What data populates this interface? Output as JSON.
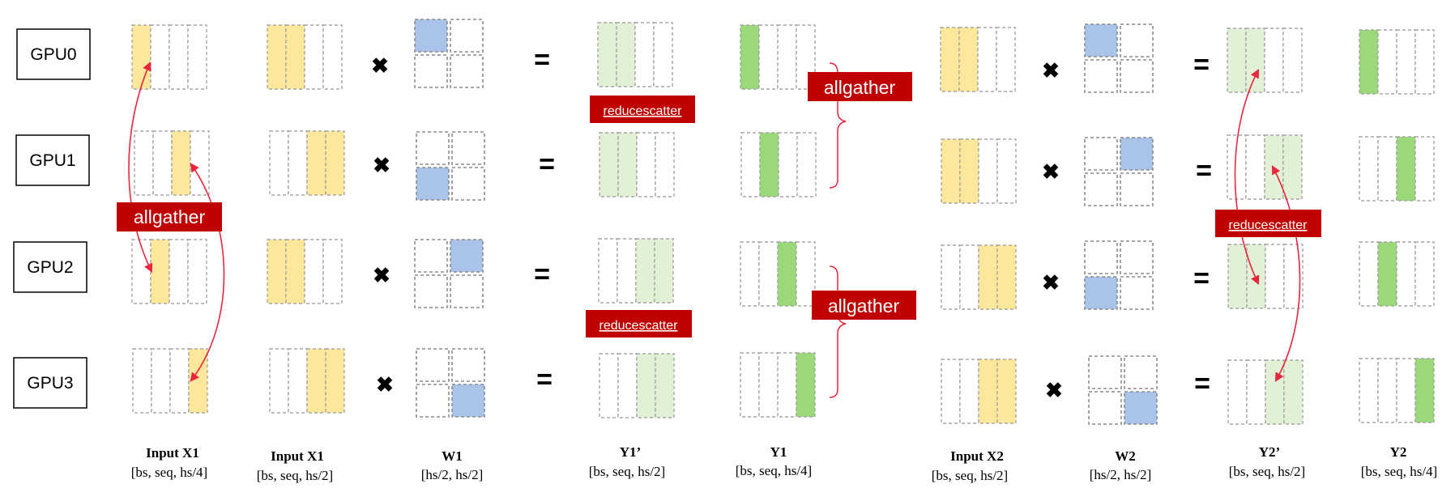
{
  "colors": {
    "input_fill": "#fde79a",
    "weight_fill": "#a9c4e8",
    "partial_fill": "#e2f0d5",
    "output_fill": "#9ad87a",
    "cell_border": "#a6a6a6",
    "banner_fill": "#c00000",
    "banner_text": "#ffffff",
    "arrow": "#e8263d"
  },
  "gpus": [
    "GPU0",
    "GPU1",
    "GPU2",
    "GPU3"
  ],
  "operators": {
    "multiply": "✖",
    "equals": "="
  },
  "banners": {
    "allgather_input": "allgather",
    "allgather_y1_top": "allgather",
    "allgather_y1_bottom": "allgather",
    "reducescatter_y1_top": "reducescatter",
    "reducescatter_y1_bottom": "reducescatter",
    "reducescatter_y2": "reducescatter"
  },
  "columns": [
    {
      "id": "input-x1-shard",
      "name": "Input X1",
      "shape": "[bs, seq, hs/4]"
    },
    {
      "id": "input-x1-full",
      "name": "Input X1",
      "shape": "[bs, seq, hs/2]"
    },
    {
      "id": "w1",
      "name": "W1",
      "shape": "[hs/2, hs/2]"
    },
    {
      "id": "y1-partial",
      "name": "Y1’",
      "shape": "[bs, seq, hs/2]"
    },
    {
      "id": "y1",
      "name": "Y1",
      "shape": "[bs, seq, hs/4]"
    },
    {
      "id": "input-x2",
      "name": "Input X2",
      "shape": "[bs, seq, hs/2]"
    },
    {
      "id": "w2",
      "name": "W2",
      "shape": "[hs/2, hs/2]"
    },
    {
      "id": "y2-partial",
      "name": "Y2’",
      "shape": "[bs, seq, hs/2]"
    },
    {
      "id": "y2",
      "name": "Y2",
      "shape": "[bs, seq, hs/4]"
    }
  ]
}
